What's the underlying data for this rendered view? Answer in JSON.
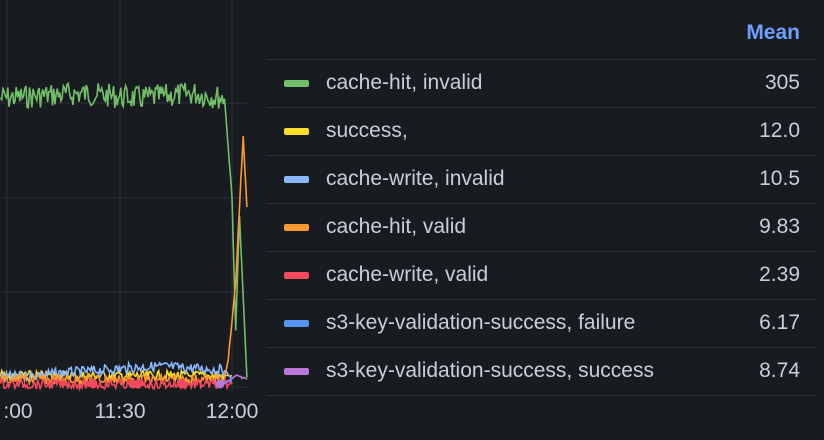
{
  "chart_data": {
    "type": "line",
    "xlabel": "",
    "ylabel": "",
    "x_tick_labels": [
      ":00",
      "11:30",
      "12:00"
    ],
    "grid": true,
    "legend_placement": "right",
    "legend_header": "Mean",
    "series": [
      {
        "name": "cache-hit, invalid",
        "color": "#73bf69",
        "mean": "305",
        "points": [
          [
            "10:58",
            305
          ],
          [
            "11:20",
            310
          ],
          [
            "11:35",
            305
          ],
          [
            "11:50",
            310
          ],
          [
            "11:58",
            305
          ],
          [
            "12:00",
            200
          ],
          [
            "12:01",
            60
          ],
          [
            "12:02",
            180
          ],
          [
            "12:04",
            10
          ]
        ]
      },
      {
        "name": "success,",
        "color": "#fade2a",
        "mean": "12.0",
        "points": [
          [
            "10:58",
            12
          ],
          [
            "11:58",
            12
          ],
          [
            "12:00",
            12
          ]
        ]
      },
      {
        "name": "cache-write, invalid",
        "color": "#8ab8ff",
        "mean": "10.5",
        "points": [
          [
            "10:58",
            10
          ],
          [
            "11:40",
            22
          ],
          [
            "11:58",
            18
          ],
          [
            "12:00",
            8
          ]
        ]
      },
      {
        "name": "cache-hit, valid",
        "color": "#ff9830",
        "mean": "9.83",
        "points": [
          [
            "10:58",
            8
          ],
          [
            "11:58",
            8
          ],
          [
            "11:59",
            30
          ],
          [
            "12:01",
            110
          ],
          [
            "12:02",
            190
          ],
          [
            "12:03",
            265
          ],
          [
            "12:04",
            190
          ]
        ]
      },
      {
        "name": "cache-write, valid",
        "color": "#f2495c",
        "mean": "2.39",
        "points": [
          [
            "10:58",
            3
          ],
          [
            "12:00",
            3
          ]
        ]
      },
      {
        "name": "s3-key-validation-success, failure",
        "color": "#5794f2",
        "mean": "6.17",
        "points": [
          [
            "11:57",
            6
          ],
          [
            "12:00",
            6
          ]
        ]
      },
      {
        "name": "s3-key-validation-success, success",
        "color": "#b877d9",
        "mean": "8.74",
        "points": [
          [
            "11:58",
            4
          ],
          [
            "12:01",
            12
          ],
          [
            "12:04",
            8
          ]
        ]
      }
    ]
  }
}
